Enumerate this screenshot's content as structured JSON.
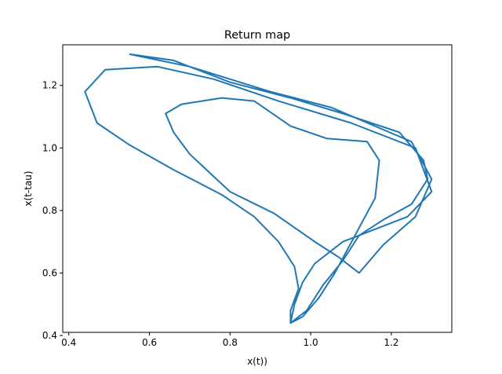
{
  "chart_data": {
    "type": "line",
    "title": "Return map",
    "xlabel": "x(t))",
    "ylabel": "x(t-tau)",
    "xlim": [
      0.385,
      1.35
    ],
    "ylim": [
      0.41,
      1.33
    ],
    "xticks": [
      0.4,
      0.6,
      0.8,
      1.0,
      1.2
    ],
    "xtick_labels": [
      "0.4",
      "0.6",
      "0.8",
      "1.0",
      "1.2"
    ],
    "yticks": [
      0.4,
      0.6,
      0.8,
      1.0,
      1.2
    ],
    "ytick_labels": [
      "0.4",
      "0.6",
      "0.8",
      "1.0",
      "1.2"
    ],
    "grid": false,
    "color": "#1f77b4",
    "series": [
      {
        "points": [
          [
            0.55,
            1.3
          ],
          [
            0.7,
            1.26
          ],
          [
            0.9,
            1.18
          ],
          [
            1.05,
            1.13
          ],
          [
            1.25,
            1.02
          ],
          [
            1.3,
            0.9
          ],
          [
            1.26,
            0.78
          ],
          [
            1.18,
            0.69
          ],
          [
            1.12,
            0.6
          ],
          [
            1.07,
            0.65
          ],
          [
            1.01,
            0.7
          ],
          [
            0.91,
            0.79
          ],
          [
            0.8,
            0.86
          ],
          [
            0.7,
            0.98
          ],
          [
            0.66,
            1.05
          ],
          [
            0.64,
            1.11
          ],
          [
            0.68,
            1.14
          ],
          [
            0.78,
            1.16
          ],
          [
            0.86,
            1.15
          ],
          [
            0.95,
            1.07
          ],
          [
            1.04,
            1.03
          ],
          [
            1.14,
            1.02
          ],
          [
            1.17,
            0.96
          ],
          [
            1.16,
            0.84
          ],
          [
            1.11,
            0.72
          ],
          [
            1.06,
            0.6
          ],
          [
            1.02,
            0.52
          ],
          [
            0.98,
            0.46
          ],
          [
            0.95,
            0.44
          ],
          [
            0.96,
            0.5
          ],
          [
            0.98,
            0.57
          ],
          [
            1.01,
            0.63
          ],
          [
            1.08,
            0.7
          ],
          [
            1.16,
            0.74
          ],
          [
            1.24,
            0.78
          ],
          [
            1.3,
            0.86
          ],
          [
            1.26,
            1.0
          ],
          [
            1.1,
            1.08
          ],
          [
            0.92,
            1.15
          ],
          [
            0.76,
            1.22
          ],
          [
            0.62,
            1.26
          ],
          [
            0.49,
            1.25
          ],
          [
            0.44,
            1.18
          ],
          [
            0.47,
            1.08
          ],
          [
            0.55,
            1.01
          ],
          [
            0.66,
            0.93
          ],
          [
            0.78,
            0.85
          ],
          [
            0.86,
            0.78
          ],
          [
            0.92,
            0.7
          ],
          [
            0.96,
            0.62
          ],
          [
            0.97,
            0.55
          ],
          [
            0.95,
            0.48
          ],
          [
            0.95,
            0.44
          ],
          [
            0.99,
            0.48
          ],
          [
            1.03,
            0.56
          ],
          [
            1.08,
            0.64
          ],
          [
            1.12,
            0.72
          ],
          [
            1.18,
            0.77
          ],
          [
            1.25,
            0.82
          ],
          [
            1.29,
            0.9
          ],
          [
            1.28,
            0.96
          ],
          [
            1.22,
            1.05
          ],
          [
            1.08,
            1.11
          ],
          [
            0.95,
            1.16
          ],
          [
            0.8,
            1.21
          ],
          [
            0.66,
            1.28
          ],
          [
            0.55,
            1.3
          ]
        ],
        "name": ""
      }
    ]
  }
}
